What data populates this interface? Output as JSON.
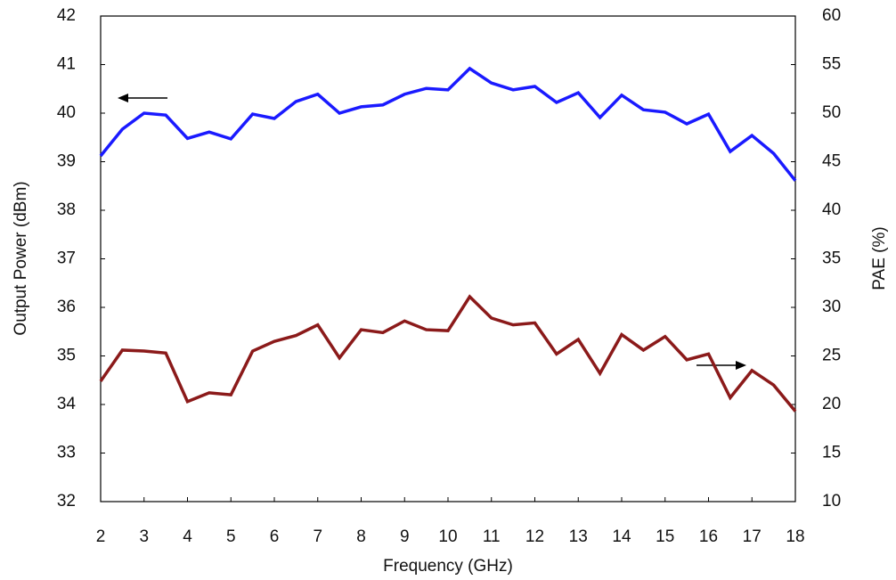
{
  "chart_data": {
    "type": "line",
    "x_label": "Frequency (GHz)",
    "y_label": "Output Power (dBm)",
    "y2_label": "PAE (%)",
    "x": [
      2,
      2.5,
      3,
      3.5,
      4,
      4.5,
      5,
      5.5,
      6,
      6.5,
      7,
      7.5,
      8,
      8.5,
      9,
      9.5,
      10,
      10.5,
      11,
      11.5,
      12,
      12.5,
      13,
      13.5,
      14,
      14.5,
      15,
      15.5,
      16,
      16.5,
      17,
      17.5,
      18
    ],
    "xlim": [
      2,
      18
    ],
    "xticks": [
      2,
      3,
      4,
      5,
      6,
      7,
      8,
      9,
      10,
      11,
      12,
      13,
      14,
      15,
      16,
      17,
      18
    ],
    "ylim": [
      32,
      42
    ],
    "yticks": [
      32,
      33,
      34,
      35,
      36,
      37,
      38,
      39,
      40,
      41,
      42
    ],
    "y2lim": [
      10,
      60
    ],
    "y2ticks": [
      10,
      15,
      20,
      25,
      30,
      35,
      40,
      45,
      50,
      55,
      60
    ],
    "grid": false,
    "series": [
      {
        "name": "Output Power",
        "color": "#1a1aff",
        "axis": "y",
        "values": [
          39.12,
          39.67,
          40.0,
          39.96,
          39.48,
          39.61,
          39.47,
          39.98,
          39.89,
          40.24,
          40.39,
          40.0,
          40.13,
          40.17,
          40.39,
          40.51,
          40.48,
          40.92,
          40.62,
          40.48,
          40.55,
          40.22,
          40.42,
          39.91,
          40.37,
          40.07,
          40.02,
          39.78,
          39.98,
          39.21,
          39.54,
          39.17,
          38.61
        ]
      },
      {
        "name": "PAE",
        "color": "#8b1a1a",
        "axis": "y2",
        "values": [
          22.4,
          25.6,
          25.5,
          25.3,
          20.3,
          21.2,
          21.0,
          25.5,
          26.5,
          27.1,
          28.2,
          24.8,
          27.7,
          27.4,
          28.6,
          27.7,
          27.6,
          31.1,
          28.9,
          28.2,
          28.4,
          25.2,
          26.7,
          23.2,
          27.2,
          25.6,
          27.0,
          24.6,
          25.2,
          20.7,
          23.5,
          22.0,
          19.3
        ]
      }
    ]
  }
}
